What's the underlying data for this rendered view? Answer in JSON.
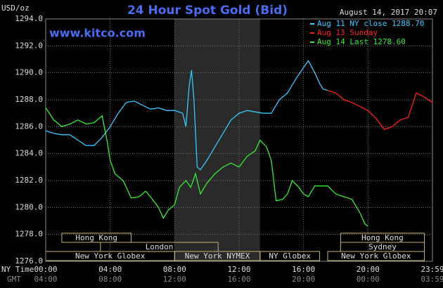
{
  "chart_data": {
    "type": "line",
    "title": "24 Hour Spot Gold (Bid)",
    "y_label": "USD/oz",
    "site": "www.kitco.com",
    "timestamp": "August 14, 2017 20:07",
    "x_label": "NY Time",
    "x2_label": "GMT",
    "xlim": [
      0,
      24
    ],
    "ylim": [
      1276,
      1294
    ],
    "xticks": [
      {
        "value": 0,
        "label": "00:00"
      },
      {
        "value": 4,
        "label": "04:00"
      },
      {
        "value": 8,
        "label": "08:00"
      },
      {
        "value": 12,
        "label": "12:00"
      },
      {
        "value": 16,
        "label": "16:00"
      },
      {
        "value": 20,
        "label": "20:00"
      },
      {
        "value": 24,
        "label": "23:59"
      }
    ],
    "x2ticks": [
      {
        "value": 0,
        "label": "04:00"
      },
      {
        "value": 4,
        "label": "08:00"
      },
      {
        "value": 8,
        "label": "12:00"
      },
      {
        "value": 12,
        "label": "16:00"
      },
      {
        "value": 16,
        "label": "20:00"
      },
      {
        "value": 20,
        "label": "00:00"
      },
      {
        "value": 24,
        "label": "03:59"
      }
    ],
    "yticks": [
      {
        "value": 1276,
        "label": "1276.0"
      },
      {
        "value": 1278,
        "label": "1278.0"
      },
      {
        "value": 1280,
        "label": "1280.0"
      },
      {
        "value": 1282,
        "label": "1282.0"
      },
      {
        "value": 1284,
        "label": "1284.0"
      },
      {
        "value": 1286,
        "label": "1286.0"
      },
      {
        "value": 1288,
        "label": "1288.0"
      },
      {
        "value": 1290,
        "label": "1290.0"
      },
      {
        "value": 1292,
        "label": "1292.0"
      },
      {
        "value": 1294,
        "label": "1294.0"
      }
    ],
    "grid": true,
    "shade": [
      8,
      13.3
    ],
    "session_rows": [
      [
        {
          "name": "Hong Kong",
          "start": 1,
          "end": 5.3
        },
        {
          "name": "Hong Kong",
          "start": 18.3,
          "end": 23.5
        }
      ],
      [
        {
          "name": "London",
          "start": 3.4,
          "end": 10.7
        },
        {
          "name": "Sydney",
          "start": 18.3,
          "end": 23.5
        }
      ],
      [
        {
          "name": "New York Globex",
          "start": 0,
          "end": 8
        },
        {
          "name": "New York NYMEX",
          "start": 8,
          "end": 13.3
        },
        {
          "name": "NY Globex",
          "start": 13.3,
          "end": 17
        },
        {
          "name": "New York Globex",
          "start": 17.5,
          "end": 23.5
        }
      ]
    ],
    "series": [
      {
        "name": "Aug 11 NY close 1288.70",
        "color": "#33ccff",
        "x": [
          0,
          0.5,
          1,
          1.5,
          2,
          2.5,
          3,
          3.5,
          4,
          4.5,
          5,
          5.5,
          6,
          6.5,
          7,
          7.5,
          8,
          8.5,
          8.7,
          8.9,
          9.05,
          9.2,
          9.4,
          9.6,
          10,
          10.5,
          11,
          11.5,
          12,
          12.5,
          13,
          13.5,
          14,
          14.5,
          15,
          15.5,
          16,
          16.3,
          16.7,
          17,
          17.2,
          17.5
        ],
        "values": [
          1285.7,
          1285.5,
          1285.4,
          1285.4,
          1285,
          1284.6,
          1284.6,
          1285.2,
          1286,
          1287,
          1287.8,
          1287.9,
          1287.6,
          1287.3,
          1287.4,
          1287.2,
          1287.2,
          1287,
          1286,
          1289,
          1290.2,
          1288,
          1283,
          1282.8,
          1283.5,
          1284.5,
          1285.5,
          1286.5,
          1287,
          1287.2,
          1287.1,
          1287,
          1287,
          1288,
          1288.5,
          1289.5,
          1290.4,
          1290.9,
          1290,
          1289.2,
          1288.8,
          1288.7
        ]
      },
      {
        "name": "Aug 13 Sunday",
        "color": "#ff2020",
        "x": [
          17.5,
          18,
          18.5,
          19,
          19.5,
          20,
          20.5,
          21,
          21.5,
          22,
          22.5,
          23,
          23.5,
          24
        ],
        "values": [
          1288.7,
          1288.5,
          1288,
          1287.8,
          1287.5,
          1287.2,
          1286.6,
          1285.8,
          1286,
          1286.5,
          1286.7,
          1288.5,
          1288.2,
          1287.8
        ]
      },
      {
        "name": "Aug 14 Last 1278.60",
        "color": "#33ee33",
        "x": [
          0,
          0.5,
          1,
          1.5,
          2,
          2.5,
          3,
          3.5,
          3.8,
          4,
          4.3,
          4.8,
          5,
          5.3,
          5.8,
          6.2,
          6.5,
          7,
          7.3,
          7.6,
          8,
          8.3,
          8.7,
          9,
          9.3,
          9.6,
          10,
          10.5,
          11,
          11.5,
          12,
          12.5,
          13,
          13.3,
          13.7,
          14,
          14.3,
          14.7,
          15,
          15.3,
          15.7,
          16,
          16.3,
          16.7,
          17,
          17.5,
          18,
          18.5,
          19,
          19.5,
          19.8,
          20
        ],
        "values": [
          1287.4,
          1286.5,
          1286,
          1286.2,
          1286.5,
          1286.2,
          1286.3,
          1286.8,
          1285,
          1283.5,
          1282.5,
          1282,
          1281.5,
          1280.7,
          1280.8,
          1281.2,
          1280.8,
          1280,
          1279.2,
          1279.8,
          1280.2,
          1281.5,
          1282,
          1281.5,
          1282.5,
          1281,
          1281.8,
          1282.5,
          1283,
          1283.3,
          1283,
          1283.8,
          1284.2,
          1285,
          1284.5,
          1283.5,
          1280.5,
          1280.6,
          1281,
          1282,
          1281.5,
          1281,
          1280.8,
          1281.6,
          1281.6,
          1281.6,
          1281,
          1280.8,
          1280.6,
          1279.6,
          1278.8,
          1278.6
        ]
      }
    ]
  }
}
